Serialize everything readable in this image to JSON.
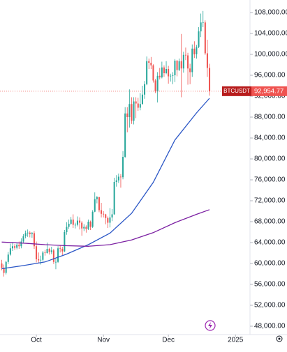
{
  "chart_data": {
    "type": "candlestick",
    "symbol": "BTCUSDT",
    "open": [
      60000,
      59200,
      58200,
      60300,
      61700,
      62900,
      63300,
      63000,
      63600,
      63300,
      64200,
      65200,
      65800,
      65900,
      65600,
      65800,
      63300,
      60800,
      60600,
      60700,
      62100,
      62000,
      62800,
      62200,
      62500,
      60300,
      60300,
      62900,
      62800,
      62300,
      66000,
      67000,
      67600,
      68400,
      67400,
      67400,
      68200,
      67800,
      66700,
      67000,
      66600,
      68000,
      67000,
      69900,
      72300,
      72700,
      70200,
      69500,
      69400,
      68700,
      67800,
      68800,
      69400,
      75600,
      75900,
      76600,
      76500,
      80400,
      88700,
      88000,
      90500,
      87300,
      91000,
      90600,
      89800,
      90500,
      92300,
      94300,
      98700,
      98400,
      97900,
      95000,
      92900,
      95900,
      95600,
      97500,
      96400,
      97200,
      95800,
      95900,
      96000,
      98800,
      97000,
      98700,
      97300,
      99900,
      99800,
      97300,
      96600,
      101100,
      100000,
      101400,
      104400,
      106100,
      106100,
      100200,
      97400
    ],
    "high": [
      60700,
      59800,
      60500,
      62200,
      63800,
      64100,
      63700,
      64000,
      64200,
      64800,
      65600,
      66300,
      66500,
      66200,
      66000,
      66200,
      64200,
      62100,
      61500,
      62400,
      62600,
      64000,
      63000,
      63200,
      62800,
      60900,
      63300,
      63400,
      63200,
      66400,
      67900,
      68400,
      68900,
      69400,
      67800,
      69000,
      68800,
      68100,
      67500,
      67300,
      68400,
      68200,
      70200,
      73600,
      72900,
      72700,
      71600,
      70000,
      69500,
      69000,
      70600,
      70400,
      76400,
      76900,
      77200,
      77100,
      81500,
      89900,
      89900,
      93300,
      91800,
      91800,
      91800,
      91700,
      92600,
      94000,
      94900,
      99600,
      99200,
      99500,
      98100,
      95300,
      96600,
      97400,
      98600,
      97900,
      98700,
      97800,
      96300,
      96600,
      99100,
      98900,
      99200,
      103900,
      100500,
      101300,
      100300,
      98200,
      101900,
      102500,
      101800,
      105200,
      107800,
      108300,
      106500,
      102800,
      98200
    ],
    "low": [
      58700,
      57500,
      57900,
      59900,
      61500,
      62400,
      62600,
      62700,
      62800,
      62900,
      63800,
      64800,
      65100,
      65000,
      64900,
      62800,
      60200,
      60000,
      59800,
      60400,
      61500,
      61900,
      61700,
      61800,
      59900,
      58900,
      60100,
      62100,
      61600,
      62200,
      65500,
      66600,
      67400,
      66800,
      66700,
      67100,
      66500,
      65300,
      66200,
      65900,
      66400,
      66400,
      66800,
      69800,
      71500,
      69800,
      68800,
      68800,
      67500,
      66800,
      66900,
      68100,
      69300,
      74700,
      75400,
      74500,
      76100,
      80200,
      85100,
      86000,
      86700,
      86600,
      87800,
      89200,
      89300,
      90400,
      91500,
      94100,
      97200,
      97200,
      94600,
      92600,
      90800,
      95200,
      95400,
      95700,
      96200,
      94400,
      94800,
      94300,
      94700,
      95800,
      96800,
      91800,
      96500,
      98900,
      94200,
      94300,
      95700,
      99300,
      99200,
      101200,
      103300,
      105200,
      99900,
      95700,
      92100
    ],
    "close": [
      59200,
      58200,
      60300,
      61700,
      62900,
      63300,
      63000,
      63600,
      63300,
      64200,
      65200,
      65800,
      65900,
      65600,
      65800,
      63300,
      60800,
      60600,
      60700,
      62100,
      62000,
      62800,
      62200,
      62500,
      60300,
      60300,
      62900,
      62800,
      62300,
      66000,
      67000,
      67600,
      68400,
      67400,
      67400,
      68200,
      67800,
      66700,
      67000,
      66600,
      68000,
      67000,
      69900,
      72300,
      72700,
      70200,
      69500,
      69400,
      68700,
      67800,
      68800,
      69400,
      75600,
      75900,
      76600,
      76500,
      80400,
      88700,
      88000,
      90500,
      87300,
      91000,
      90600,
      89800,
      90500,
      92300,
      94300,
      98700,
      98400,
      97900,
      95000,
      92900,
      95900,
      95600,
      97500,
      96400,
      97200,
      95800,
      95900,
      96000,
      98800,
      97000,
      98700,
      97300,
      99900,
      99800,
      97300,
      96600,
      101100,
      100000,
      101400,
      104400,
      106100,
      106100,
      100200,
      97400,
      92954.77
    ],
    "up_color": "#26a69a",
    "down_color": "#ef5350",
    "lines": [
      {
        "color": "#2a56c6",
        "x": [
          0,
          10,
          20,
          30,
          40,
          50,
          60,
          70,
          80,
          90,
          96
        ],
        "values": [
          59000,
          59600,
          60300,
          61800,
          63600,
          65800,
          69600,
          75500,
          83600,
          88800,
          91600
        ]
      },
      {
        "color": "#7b1fa2",
        "x": [
          0,
          10,
          20,
          30,
          40,
          50,
          60,
          70,
          80,
          90,
          96
        ],
        "values": [
          64100,
          63900,
          63600,
          63400,
          63300,
          63600,
          64500,
          65900,
          67800,
          69400,
          70300
        ]
      }
    ],
    "price_line": {
      "value": 92954.77,
      "label": "92,954.77"
    },
    "xlim": [
      -0.8,
      114.7
    ],
    "xticks": [
      {
        "value": 16,
        "label": "Oct"
      },
      {
        "value": 47,
        "label": "Nov"
      },
      {
        "value": 77,
        "label": "Dec"
      },
      {
        "value": 108,
        "label": "2025"
      }
    ],
    "ylim": [
      46400,
      110400
    ],
    "yticks": [
      {
        "value": 48000,
        "label": "48,000.00"
      },
      {
        "value": 52000,
        "label": "52,000.00"
      },
      {
        "value": 56000,
        "label": "56,000.00"
      },
      {
        "value": 60000,
        "label": "60,000.00"
      },
      {
        "value": 64000,
        "label": "64,000.00"
      },
      {
        "value": 68000,
        "label": "68,000.00"
      },
      {
        "value": 72000,
        "label": "72,000.00"
      },
      {
        "value": 76000,
        "label": "76,000.00"
      },
      {
        "value": 80000,
        "label": "80,000.00"
      },
      {
        "value": 84000,
        "label": "84,000.00"
      },
      {
        "value": 88000,
        "label": "88,000.00"
      },
      {
        "value": 92000,
        "label": "92,000.00"
      },
      {
        "value": 96000,
        "label": "96,000.00"
      },
      {
        "value": 100000,
        "label": "100,000.00"
      },
      {
        "value": 104000,
        "label": "104,000.00"
      },
      {
        "value": 108000,
        "label": "108,000.00"
      }
    ]
  }
}
